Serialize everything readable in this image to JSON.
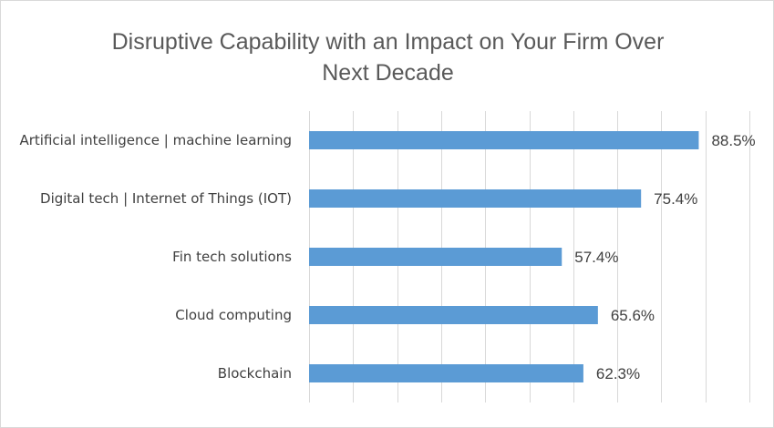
{
  "chart_data": {
    "type": "bar",
    "orientation": "horizontal",
    "title": "Disruptive Capability with an Impact on Your Firm Over Next Decade",
    "title_lines": [
      "Disruptive Capability with an Impact on Your Firm Over",
      "Next Decade"
    ],
    "categories": [
      "Artificial intelligence | machine learning",
      "Digital tech | Internet of Things (IOT)",
      "Fin tech solutions",
      "Cloud computing",
      "Blockchain"
    ],
    "values": [
      88.5,
      75.4,
      57.4,
      65.6,
      62.3
    ],
    "data_labels": [
      "88.5%",
      "75.4%",
      "57.4%",
      "65.6%",
      "62.3%"
    ],
    "xlim": [
      0,
      100
    ],
    "grid": "vertical",
    "legend": "none",
    "bar_color": "#5b9bd5",
    "grid_color": "#d9d9d9",
    "text_color": "#404040"
  }
}
